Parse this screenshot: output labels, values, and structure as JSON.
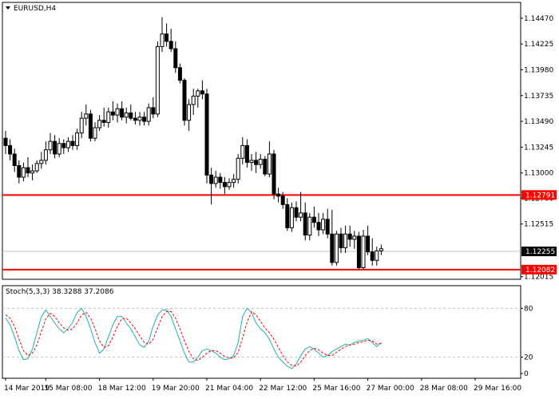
{
  "header": {
    "symbol_label": "EURUSD,H4",
    "menu_icon": "triangle-down-icon"
  },
  "price_panel": {
    "y_ticks": [
      "1.14470",
      "1.14225",
      "1.13980",
      "1.13735",
      "1.13490",
      "1.13245",
      "1.13000",
      "1.12760",
      "1.12515",
      "1.12015"
    ],
    "y_tick_values": [
      1.1447,
      1.14225,
      1.1398,
      1.13735,
      1.1349,
      1.13245,
      1.13,
      1.1276,
      1.12515,
      1.12015
    ],
    "ylim": [
      1.1199,
      1.1462
    ],
    "levels": [
      {
        "value": 1.12791,
        "label": "1.12791",
        "color": "#ff0000"
      },
      {
        "value": 1.12082,
        "label": "1.12082",
        "color": "#ff0000"
      }
    ],
    "current_price": {
      "value": 1.12255,
      "label": "1.12255"
    }
  },
  "stoch_panel": {
    "title": "Stoch(5,3,3) 38.3288 37.2086",
    "y_ticks": [
      "80",
      "20",
      "0"
    ],
    "y_tick_values": [
      80,
      20,
      0
    ],
    "levels": [
      80,
      20
    ],
    "ylim": [
      0,
      100
    ]
  },
  "x_axis": {
    "labels": [
      "14 Mar 2019",
      "15 Mar 08:00",
      "18 Mar 12:00",
      "19 Mar 20:00",
      "21 Mar 04:00",
      "22 Mar 12:00",
      "25 Mar 16:00",
      "27 Mar 00:00",
      "28 Mar 08:00",
      "29 Mar 16:00"
    ],
    "label_bar_index": [
      0,
      9,
      21,
      33,
      45,
      57,
      69,
      81,
      93,
      105
    ]
  },
  "colors": {
    "background": "#ffffff",
    "candle_outline": "#000000",
    "bull_fill": "#ffffff",
    "bear_fill": "#000000",
    "level_line": "#ff0000",
    "price_grid": "#c0c0c0",
    "stoch_main": "#20b2aa",
    "stoch_signal": "#ff0000",
    "stoch_level": "#c0c0c0"
  },
  "chart_data": [
    {
      "type": "candlestick",
      "title": "EURUSD,H4",
      "ylim": [
        1.1199,
        1.1462
      ],
      "ohlc": [
        [
          1.1333,
          1.134,
          1.1318,
          1.1326
        ],
        [
          1.1326,
          1.1332,
          1.1312,
          1.1318
        ],
        [
          1.1318,
          1.1323,
          1.1301,
          1.1307
        ],
        [
          1.1307,
          1.1312,
          1.129,
          1.1296
        ],
        [
          1.1296,
          1.131,
          1.1292,
          1.1305
        ],
        [
          1.1305,
          1.1315,
          1.1296,
          1.13
        ],
        [
          1.13,
          1.1308,
          1.1293,
          1.1302
        ],
        [
          1.1302,
          1.1312,
          1.13,
          1.1309
        ],
        [
          1.1309,
          1.132,
          1.1304,
          1.1312
        ],
        [
          1.1312,
          1.133,
          1.1308,
          1.1322
        ],
        [
          1.1322,
          1.1338,
          1.1318,
          1.133
        ],
        [
          1.133,
          1.1336,
          1.1314,
          1.1318
        ],
        [
          1.1318,
          1.1333,
          1.1315,
          1.1328
        ],
        [
          1.1328,
          1.1332,
          1.1318,
          1.1324
        ],
        [
          1.1324,
          1.1334,
          1.132,
          1.133
        ],
        [
          1.133,
          1.1336,
          1.1322,
          1.1326
        ],
        [
          1.1326,
          1.1342,
          1.1322,
          1.1338
        ],
        [
          1.1338,
          1.1358,
          1.1333,
          1.1352
        ],
        [
          1.1352,
          1.1365,
          1.1345,
          1.1356
        ],
        [
          1.1356,
          1.136,
          1.133,
          1.1333
        ],
        [
          1.1333,
          1.1348,
          1.133,
          1.1343
        ],
        [
          1.1343,
          1.1355,
          1.134,
          1.135
        ],
        [
          1.135,
          1.1362,
          1.1344,
          1.1348
        ],
        [
          1.1348,
          1.1362,
          1.1343,
          1.1358
        ],
        [
          1.1358,
          1.1368,
          1.135,
          1.1355
        ],
        [
          1.1355,
          1.1366,
          1.1348,
          1.1361
        ],
        [
          1.1361,
          1.1368,
          1.135,
          1.1353
        ],
        [
          1.1353,
          1.1362,
          1.1347,
          1.1357
        ],
        [
          1.1357,
          1.1365,
          1.135,
          1.1352
        ],
        [
          1.1352,
          1.1358,
          1.1346,
          1.135
        ],
        [
          1.135,
          1.1358,
          1.1345,
          1.1353
        ],
        [
          1.1353,
          1.1358,
          1.1345,
          1.1349
        ],
        [
          1.1349,
          1.1366,
          1.1345,
          1.1362
        ],
        [
          1.1362,
          1.1372,
          1.1352,
          1.1356
        ],
        [
          1.1356,
          1.1425,
          1.1353,
          1.142
        ],
        [
          1.142,
          1.1448,
          1.1415,
          1.1432
        ],
        [
          1.1432,
          1.1442,
          1.142,
          1.1425
        ],
        [
          1.1425,
          1.1437,
          1.1415,
          1.1418
        ],
        [
          1.1418,
          1.1425,
          1.1395,
          1.14
        ],
        [
          1.14,
          1.1404,
          1.1385,
          1.1388
        ],
        [
          1.1388,
          1.139,
          1.1345,
          1.135
        ],
        [
          1.135,
          1.137,
          1.134,
          1.1365
        ],
        [
          1.1365,
          1.138,
          1.1355,
          1.1373
        ],
        [
          1.1373,
          1.138,
          1.1362,
          1.1378
        ],
        [
          1.1378,
          1.1388,
          1.137,
          1.1375
        ],
        [
          1.1375,
          1.138,
          1.129,
          1.1298
        ],
        [
          1.1298,
          1.1305,
          1.127,
          1.129
        ],
        [
          1.129,
          1.1302,
          1.1286,
          1.1296
        ],
        [
          1.1296,
          1.13,
          1.1285,
          1.1291
        ],
        [
          1.1291,
          1.1296,
          1.128,
          1.1287
        ],
        [
          1.1287,
          1.1295,
          1.1284,
          1.1291
        ],
        [
          1.1291,
          1.1299,
          1.1286,
          1.1294
        ],
        [
          1.1294,
          1.1318,
          1.129,
          1.1314
        ],
        [
          1.1314,
          1.1334,
          1.1308,
          1.1326
        ],
        [
          1.1326,
          1.1332,
          1.1305,
          1.131
        ],
        [
          1.131,
          1.1318,
          1.1302,
          1.1312
        ],
        [
          1.1312,
          1.132,
          1.13,
          1.1308
        ],
        [
          1.1308,
          1.1318,
          1.1304,
          1.1313
        ],
        [
          1.1313,
          1.1316,
          1.1297,
          1.1299
        ],
        [
          1.1299,
          1.133,
          1.1296,
          1.1318
        ],
        [
          1.1318,
          1.1322,
          1.1275,
          1.128
        ],
        [
          1.128,
          1.1286,
          1.1272,
          1.1278
        ],
        [
          1.1278,
          1.1282,
          1.1266,
          1.127
        ],
        [
          1.127,
          1.1276,
          1.1245,
          1.1248
        ],
        [
          1.1248,
          1.1272,
          1.1244,
          1.1267
        ],
        [
          1.1267,
          1.1273,
          1.1254,
          1.1258
        ],
        [
          1.1258,
          1.1282,
          1.1254,
          1.1262
        ],
        [
          1.1262,
          1.1272,
          1.1236,
          1.1241
        ],
        [
          1.1241,
          1.1262,
          1.1236,
          1.1258
        ],
        [
          1.1258,
          1.1268,
          1.1248,
          1.1253
        ],
        [
          1.1253,
          1.1262,
          1.124,
          1.1246
        ],
        [
          1.1246,
          1.1262,
          1.1242,
          1.1256
        ],
        [
          1.1256,
          1.1266,
          1.1238,
          1.1242
        ],
        [
          1.1242,
          1.1265,
          1.1212,
          1.1215
        ],
        [
          1.1215,
          1.1245,
          1.1212,
          1.1242
        ],
        [
          1.1242,
          1.1248,
          1.1224,
          1.1229
        ],
        [
          1.1229,
          1.125,
          1.1224,
          1.1242
        ],
        [
          1.1242,
          1.125,
          1.123,
          1.1237
        ],
        [
          1.1237,
          1.1245,
          1.1228,
          1.124
        ],
        [
          1.124,
          1.1244,
          1.1208,
          1.121
        ],
        [
          1.121,
          1.1246,
          1.1208,
          1.124
        ],
        [
          1.124,
          1.125,
          1.1222,
          1.1225
        ],
        [
          1.1225,
          1.1238,
          1.1212,
          1.1217
        ],
        [
          1.1217,
          1.123,
          1.1212,
          1.1226
        ],
        [
          1.1226,
          1.1232,
          1.1222,
          1.1228
        ]
      ]
    },
    {
      "type": "line",
      "title": "Stoch(5,3,3) 38.3288 37.2086",
      "ylim": [
        0,
        100
      ],
      "series": [
        {
          "values": [
            68,
            60,
            45,
            28,
            17,
            18,
            30,
            50,
            70,
            78,
            70,
            62,
            55,
            50,
            55,
            63,
            75,
            80,
            70,
            55,
            38,
            25,
            30,
            45,
            60,
            70,
            70,
            62,
            55,
            45,
            35,
            32,
            40,
            58,
            72,
            78,
            78,
            70,
            55,
            40,
            25,
            14,
            14,
            20,
            28,
            30,
            28,
            25,
            20,
            17,
            18,
            22,
            38,
            70,
            80,
            75,
            62,
            55,
            50,
            42,
            30,
            20,
            14,
            9,
            6,
            12,
            22,
            30,
            33,
            30,
            25,
            20,
            22,
            27,
            30,
            33,
            36,
            35,
            38,
            40,
            41,
            43,
            38,
            33,
            38
          ]
        },
        {
          "values": [
            72,
            68,
            58,
            42,
            28,
            22,
            25,
            35,
            52,
            67,
            74,
            70,
            62,
            56,
            53,
            55,
            62,
            72,
            75,
            68,
            55,
            40,
            32,
            34,
            45,
            58,
            67,
            68,
            62,
            55,
            46,
            38,
            36,
            42,
            56,
            70,
            76,
            76,
            68,
            55,
            40,
            27,
            18,
            16,
            20,
            25,
            28,
            28,
            25,
            21,
            19,
            19,
            26,
            44,
            63,
            76,
            72,
            64,
            56,
            50,
            42,
            32,
            22,
            14,
            10,
            9,
            14,
            22,
            28,
            31,
            29,
            25,
            22,
            22,
            26,
            30,
            33,
            35,
            36,
            38,
            39,
            41,
            40,
            36,
            37
          ]
        }
      ]
    }
  ]
}
